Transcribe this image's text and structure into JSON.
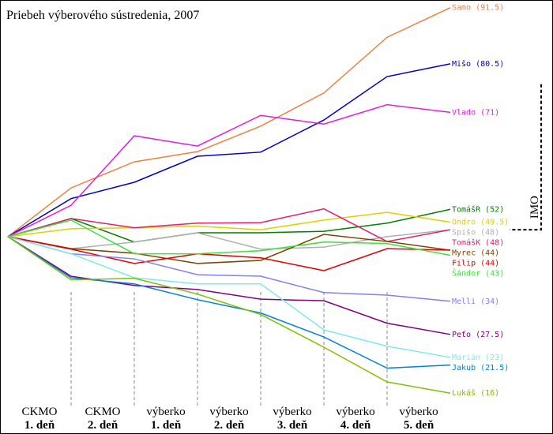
{
  "chart_data": {
    "type": "line",
    "title": "Priebeh výberového sústredenia, 2007",
    "categories": [
      [
        "CKMO",
        "1. deň"
      ],
      [
        "CKMO",
        "2. deň"
      ],
      [
        "výberko",
        "1. deň"
      ],
      [
        "výberko",
        "2. deň"
      ],
      [
        "výberko",
        "3. deň"
      ],
      [
        "výberko",
        "4. deň"
      ],
      [
        "výberko",
        "5. deň"
      ]
    ],
    "start": 46.65,
    "ylim": [
      8,
      93
    ],
    "imo": {
      "label": "IMO",
      "range": [
        48,
        76.5
      ]
    },
    "series": [
      {
        "name": "Samo (91.5)",
        "color": "#f08040",
        "values": [
          56.2,
          61.3,
          63.3,
          68.3,
          74.8,
          85.7,
          91.5
        ]
      },
      {
        "name": "Mišo (80.5)",
        "color": "#0000c0",
        "values": [
          54.1,
          57.3,
          62.4,
          63.2,
          69.5,
          78.0,
          80.5
        ]
      },
      {
        "name": "Vlado (71)",
        "color": "#e020e0",
        "values": [
          52.8,
          66.4,
          64.4,
          70.4,
          68.7,
          72.5,
          71
        ]
      },
      {
        "name": "TomášR (52)",
        "color": "#008000",
        "values": [
          50.2,
          45.6,
          47.4,
          47.4,
          47.7,
          49.3,
          52
        ]
      },
      {
        "name": "Ondro (49.5)",
        "color": "#e0d000",
        "values": [
          48.2,
          48.4,
          48.7,
          48.0,
          49.9,
          51.4,
          49.5
        ]
      },
      {
        "name": "Spišo (48)",
        "color": "#b0b0b0",
        "values": [
          44.3,
          45.6,
          47.4,
          44.2,
          44.6,
          46.65,
          48
        ]
      },
      {
        "name": "TomášK (48)",
        "color": "#e0206b",
        "values": [
          50.2,
          48.4,
          49.3,
          49.4,
          52.1,
          45.7,
          48
        ]
      },
      {
        "name": "Myrec (44)",
        "color": "#804000",
        "values": [
          44.3,
          43.4,
          41.4,
          42.0,
          47.1,
          45.7,
          44
        ]
      },
      {
        "name": "Filip (44)",
        "color": "#e00000",
        "values": [
          44.2,
          41.4,
          43.3,
          42.5,
          40.0,
          44.3,
          44
        ]
      },
      {
        "name": "Šándor (43)",
        "color": "#40e040",
        "values": [
          49.9,
          43.3,
          43.3,
          43.9,
          45.6,
          45.3,
          43
        ]
      },
      {
        "name": "Melli (34)",
        "color": "#8080f0",
        "values": [
          43.3,
          42.3,
          39.2,
          38.9,
          35.7,
          35.2,
          34
        ]
      },
      {
        "name": "Peťo (27.5)",
        "color": "#800080",
        "values": [
          38.9,
          37.1,
          36.3,
          34.4,
          34.1,
          29.7,
          27.5
        ]
      },
      {
        "name": "Marián (23)",
        "color": "#80e8f0",
        "values": [
          43.3,
          38.6,
          37.4,
          37.4,
          28.4,
          25.2,
          23
        ]
      },
      {
        "name": "Jakub (21.5)",
        "color": "#0080e0",
        "values": [
          38.6,
          37.4,
          34.3,
          31.7,
          27.0,
          20.9,
          21.5
        ]
      },
      {
        "name": "Lukáš (16)",
        "color": "#80c000",
        "values": [
          38.2,
          38.5,
          35.4,
          31.4,
          25.0,
          18.2,
          16
        ]
      }
    ]
  }
}
